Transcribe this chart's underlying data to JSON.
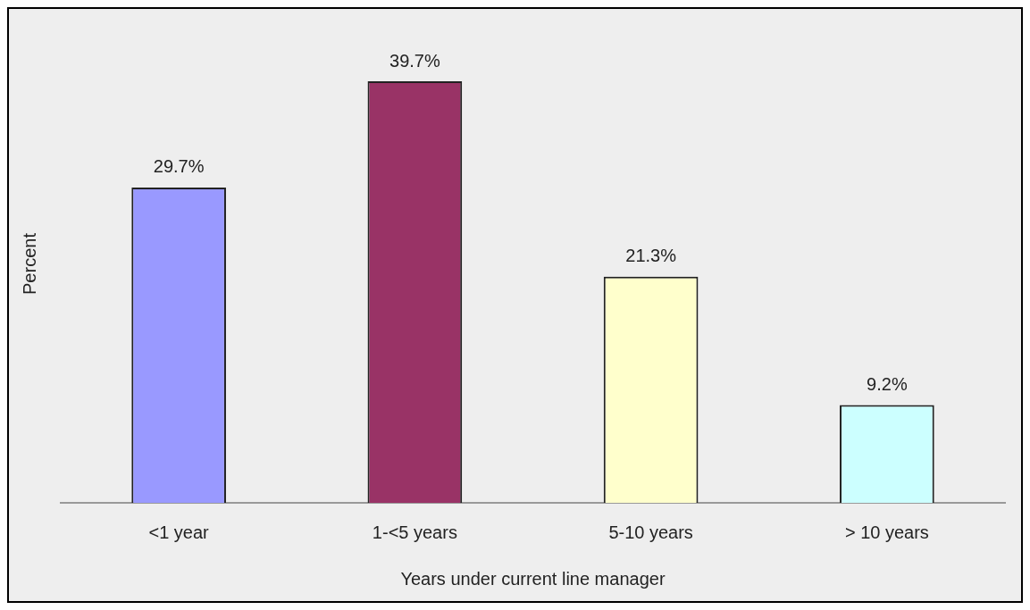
{
  "chart_data": {
    "type": "bar",
    "xlabel": "Years under current line manager",
    "ylabel": "Percent",
    "categories": [
      "<1 year",
      "1-<5 years",
      "5-10 years",
      "> 10 years"
    ],
    "values": [
      29.7,
      39.7,
      21.3,
      9.2
    ],
    "colors": [
      "#9999ff",
      "#993366",
      "#ffffcc",
      "#ccffff"
    ],
    "value_labels": [
      "29.7%",
      "39.7%",
      "21.3%",
      "9.2%"
    ],
    "grid": false,
    "legend": false
  }
}
